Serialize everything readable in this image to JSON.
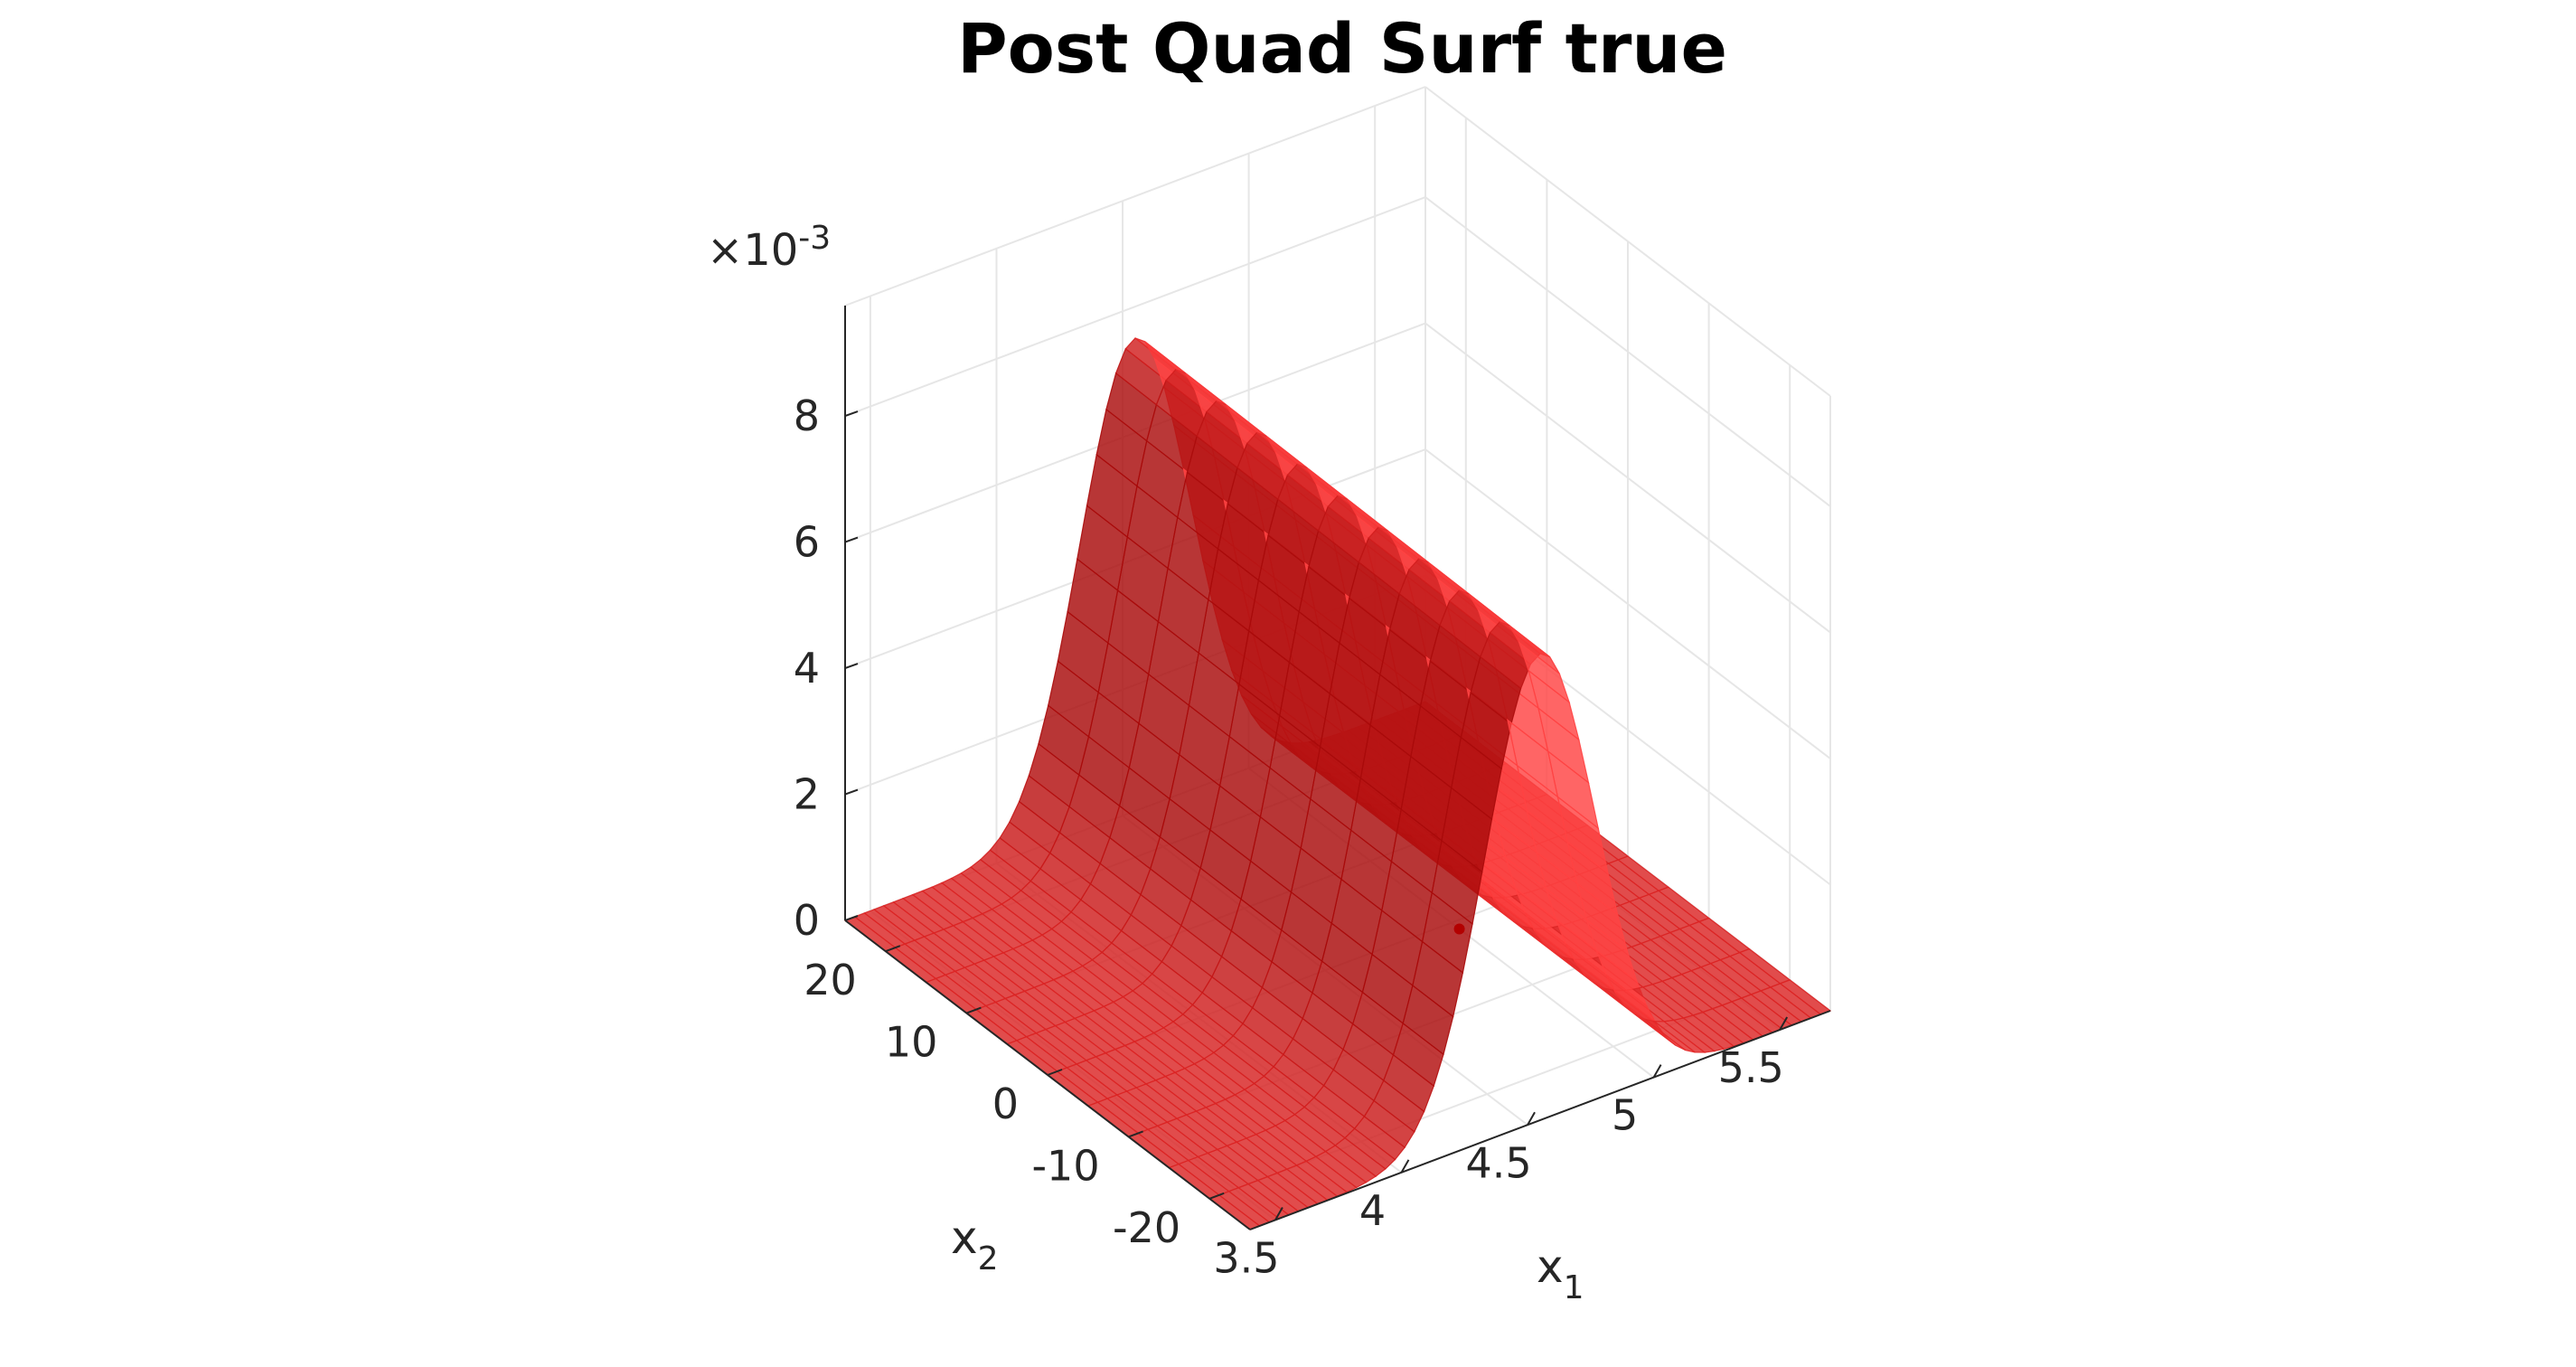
{
  "figure": {
    "title": "Post Quad Surf true"
  },
  "chart_data": {
    "type": "surface",
    "title": "Post Quad Surf true",
    "xlabel": "x",
    "xlabel_sub": "1",
    "ylabel": "x",
    "ylabel_sub": "2",
    "zlabel": "",
    "x_ticks": [
      "3.5",
      "4",
      "4.5",
      "5",
      "5.5"
    ],
    "y_ticks": [
      "-20",
      "-10",
      "0",
      "10",
      "20"
    ],
    "z_ticks": [
      "0",
      "2",
      "4",
      "6",
      "8"
    ],
    "z_multiplier_base": "×10",
    "z_multiplier_exp": "-3",
    "xlim": [
      3.4,
      5.7
    ],
    "ylim": [
      -25,
      25
    ],
    "zlim": [
      0,
      0.00975
    ],
    "grid": true,
    "surface": {
      "description_shape": "gaussian ridge along x2, centered in x1",
      "x1_center": 4.55,
      "x1_sigma": 0.22,
      "peak_at_x2_min": 0.0074,
      "peak_at_x2_max": 0.0075,
      "color": "#e8222a"
    },
    "marker": {
      "x1": 5.0,
      "x2": -1.0,
      "z": 0.0,
      "color": "#b30000"
    }
  }
}
